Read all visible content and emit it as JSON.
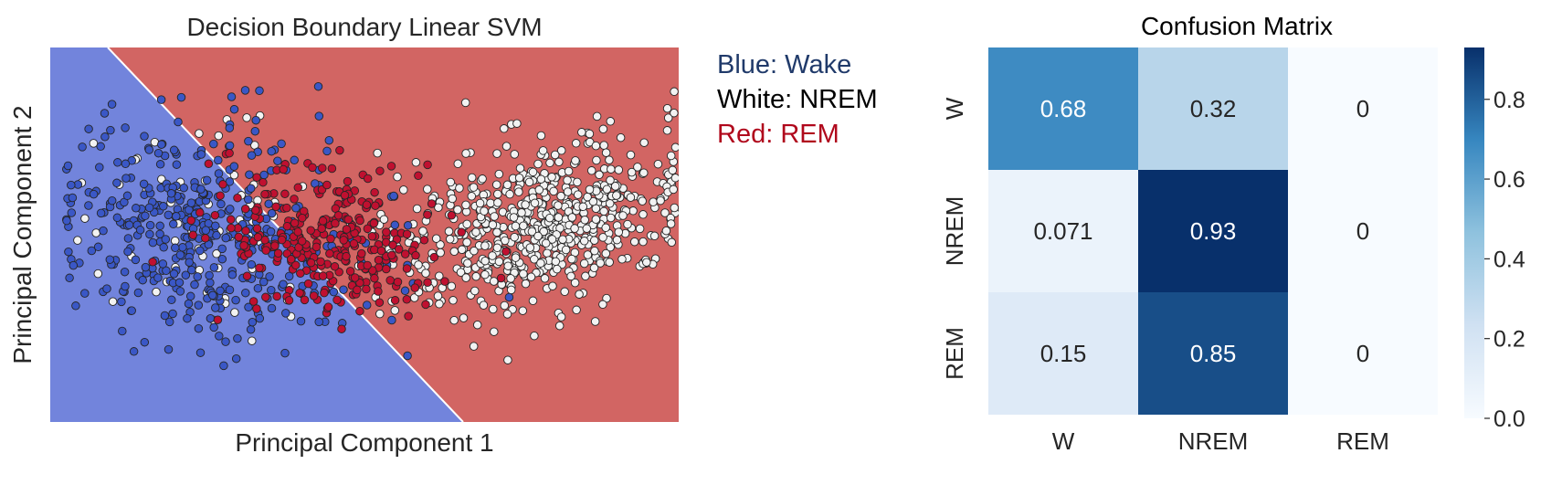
{
  "chart_data": [
    {
      "type": "scatter",
      "title": "Decision Boundary Linear SVM",
      "xlabel": "Principal Component 1",
      "ylabel": "Principal Component 2",
      "grid": false,
      "legend_position": "right, outside plot",
      "series": [
        {
          "name": "Wake",
          "color": "#3a57c6"
        },
        {
          "name": "NREM",
          "color": "#f2f2f2"
        },
        {
          "name": "REM",
          "color": "#c01030"
        }
      ],
      "regions": [
        {
          "class": "Wake",
          "color": "#7284dc"
        },
        {
          "class": "REM",
          "color": "#d26563"
        }
      ],
      "legend_entries": [
        {
          "text": "Blue: Wake",
          "color": "#203a6a"
        },
        {
          "text": "White: NREM",
          "color": "#000000"
        },
        {
          "text": "Red: REM",
          "color": "#b0081c"
        }
      ]
    },
    {
      "type": "heatmap",
      "title": "Confusion Matrix",
      "x_categories": [
        "W",
        "NREM",
        "REM"
      ],
      "y_categories": [
        "W",
        "NREM",
        "REM"
      ],
      "values": [
        [
          0.68,
          0.32,
          0
        ],
        [
          0.071,
          0.93,
          0
        ],
        [
          0.15,
          0.85,
          0
        ]
      ],
      "cell_labels": [
        [
          "0.68",
          "0.32",
          "0"
        ],
        [
          "0.071",
          "0.93",
          "0"
        ],
        [
          "0.15",
          "0.85",
          "0"
        ]
      ],
      "colormap": "Blues",
      "colorbar": {
        "range": [
          0,
          0.93
        ],
        "ticks": [
          0.0,
          0.2,
          0.4,
          0.6,
          0.8
        ],
        "tick_labels": [
          "0.0",
          "0.2",
          "0.4",
          "0.6",
          "0.8"
        ]
      }
    }
  ]
}
